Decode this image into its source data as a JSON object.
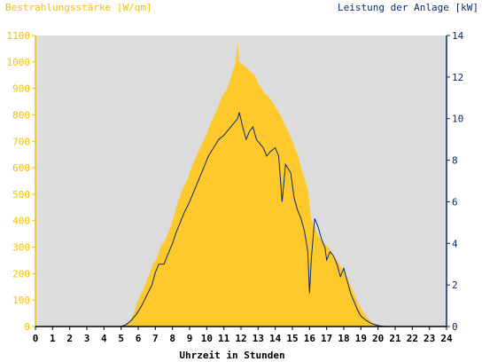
{
  "chart_data": {
    "type": "area",
    "title_left": "Bestrahlungsstärke [W/qm]",
    "title_right": "Leistung der Anlage [kW]",
    "xlabel": "Uhrzeit in Stunden",
    "xlim": [
      0,
      24
    ],
    "x_ticks": [
      "0",
      "1",
      "2",
      "3",
      "4",
      "5",
      "6",
      "7",
      "8",
      "9",
      "10",
      "11",
      "12",
      "13",
      "14",
      "15",
      "16",
      "17",
      "18",
      "19",
      "20",
      "21",
      "22",
      "23",
      "24"
    ],
    "y1lim": [
      0,
      1100
    ],
    "y1_ticks": [
      "0",
      "100",
      "200",
      "300",
      "400",
      "500",
      "600",
      "700",
      "800",
      "900",
      "1000",
      "1100"
    ],
    "y2lim": [
      0,
      14
    ],
    "y2_ticks": [
      "0",
      "2",
      "4",
      "6",
      "8",
      "10",
      "12",
      "14"
    ],
    "grid": false,
    "colors": {
      "irradiance": "#ffc92c",
      "power": "#0a2a6b",
      "plot_bg": "#dcdcdc",
      "axis_left": "#f5c000",
      "axis_right": "#0a2a6b"
    },
    "series": [
      {
        "axis": "left",
        "x": [
          0,
          4.9,
          5.2,
          5.5,
          5.8,
          6.0,
          6.3,
          6.6,
          6.9,
          7.1,
          7.3,
          7.6,
          7.9,
          8.1,
          8.3,
          8.6,
          8.9,
          9.1,
          9.3,
          9.5,
          9.8,
          10.0,
          10.3,
          10.6,
          10.9,
          11.2,
          11.5,
          11.7,
          11.8,
          11.9,
          12.1,
          12.3,
          12.6,
          12.8,
          13.0,
          13.2,
          13.4,
          13.6,
          13.9,
          14.1,
          14.3,
          14.5,
          14.8,
          15.0,
          15.3,
          15.5,
          15.7,
          15.9,
          16.0,
          16.1,
          16.3,
          16.5,
          16.7,
          16.9,
          17.1,
          17.3,
          17.5,
          17.7,
          17.9,
          18.1,
          18.3,
          18.5,
          18.7,
          18.9,
          19.1,
          19.3,
          19.5,
          19.7,
          20.0,
          20.3,
          20.6,
          21.0,
          24
        ],
        "y": [
          0,
          0,
          5,
          20,
          60,
          100,
          140,
          190,
          240,
          260,
          300,
          330,
          380,
          420,
          470,
          520,
          560,
          600,
          630,
          660,
          700,
          730,
          780,
          820,
          870,
          900,
          960,
          1000,
          1080,
          1000,
          990,
          980,
          960,
          950,
          920,
          900,
          880,
          870,
          840,
          820,
          800,
          770,
          730,
          700,
          650,
          600,
          560,
          520,
          460,
          400,
          380,
          340,
          330,
          310,
          300,
          280,
          260,
          240,
          220,
          200,
          170,
          140,
          110,
          80,
          60,
          40,
          25,
          12,
          5,
          2,
          0,
          0,
          0
        ]
      },
      {
        "axis": "right",
        "x": [
          0,
          5.0,
          5.3,
          5.6,
          5.9,
          6.2,
          6.5,
          6.8,
          7.0,
          7.2,
          7.5,
          7.8,
          8.0,
          8.2,
          8.4,
          8.7,
          9.0,
          9.2,
          9.4,
          9.6,
          9.9,
          10.1,
          10.4,
          10.7,
          11.0,
          11.3,
          11.6,
          11.8,
          11.9,
          12.1,
          12.3,
          12.5,
          12.7,
          12.9,
          13.1,
          13.3,
          13.5,
          13.7,
          14.0,
          14.2,
          14.4,
          14.6,
          14.9,
          15.1,
          15.3,
          15.5,
          15.7,
          15.9,
          16.0,
          16.1,
          16.3,
          16.5,
          16.7,
          16.9,
          17.0,
          17.2,
          17.4,
          17.6,
          17.8,
          18.0,
          18.2,
          18.4,
          18.6,
          18.8,
          19.0,
          19.3,
          19.6,
          20.0,
          20.4,
          24
        ],
        "y": [
          0,
          0,
          0.1,
          0.3,
          0.6,
          1.0,
          1.5,
          2.0,
          2.6,
          3.0,
          3.0,
          3.6,
          4.0,
          4.5,
          4.9,
          5.5,
          6.0,
          6.4,
          6.8,
          7.2,
          7.8,
          8.2,
          8.6,
          9.0,
          9.2,
          9.5,
          9.8,
          10.0,
          10.3,
          9.6,
          9.0,
          9.4,
          9.6,
          9.0,
          8.8,
          8.6,
          8.2,
          8.4,
          8.6,
          8.2,
          6.0,
          7.8,
          7.4,
          6.2,
          5.6,
          5.2,
          4.6,
          3.6,
          1.6,
          3.2,
          5.2,
          4.8,
          4.2,
          3.8,
          3.2,
          3.6,
          3.4,
          3.0,
          2.4,
          2.8,
          2.2,
          1.6,
          1.2,
          0.8,
          0.5,
          0.3,
          0.15,
          0.05,
          0,
          0
        ]
      }
    ]
  }
}
